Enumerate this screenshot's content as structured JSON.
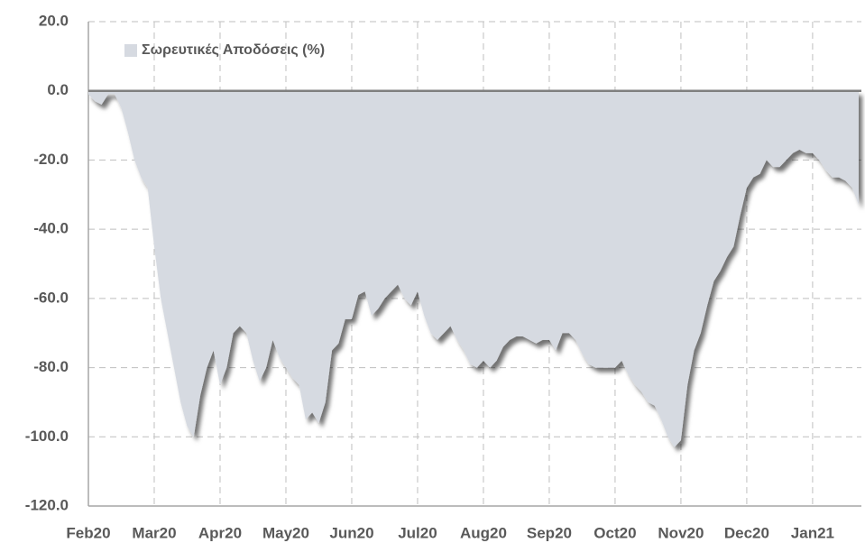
{
  "chart_data": {
    "type": "area",
    "categories": [
      "Feb20",
      null,
      null,
      null,
      null,
      null,
      null,
      null,
      null,
      null,
      "Mar20",
      null,
      null,
      null,
      null,
      null,
      null,
      null,
      null,
      null,
      "Apr20",
      null,
      null,
      null,
      null,
      null,
      null,
      null,
      null,
      null,
      "May20",
      null,
      null,
      null,
      null,
      null,
      null,
      null,
      null,
      null,
      "Jun20",
      null,
      null,
      null,
      null,
      null,
      null,
      null,
      null,
      null,
      "Jul20",
      null,
      null,
      null,
      null,
      null,
      null,
      null,
      null,
      null,
      "Aug20",
      null,
      null,
      null,
      null,
      null,
      null,
      null,
      null,
      null,
      "Sep20",
      null,
      null,
      null,
      null,
      null,
      null,
      null,
      null,
      null,
      "Oct20",
      null,
      null,
      null,
      null,
      null,
      null,
      null,
      null,
      null,
      "Nov20",
      null,
      null,
      null,
      null,
      null,
      null,
      null,
      null,
      null,
      "Dec20",
      null,
      null,
      null,
      null,
      null,
      null,
      null,
      null,
      null,
      "Jan21",
      null,
      null,
      null,
      null,
      null,
      null,
      null
    ],
    "series": [
      {
        "name": "Σωρευτικές Αποδόσεις (%)",
        "color": "#d6dae1",
        "values": [
          -1,
          -3,
          -4,
          -1,
          -1,
          -5,
          -12,
          -20,
          -25,
          -28,
          -45,
          -60,
          -70,
          -80,
          -90,
          -97,
          -100,
          -88,
          -80,
          -75,
          -85,
          -80,
          -70,
          -68,
          -70,
          -78,
          -84,
          -80,
          -72,
          -77,
          -80,
          -83,
          -85,
          -95,
          -93,
          -96,
          -90,
          -75,
          -73,
          -66,
          -66,
          -59,
          -58,
          -65,
          -63,
          -60,
          -58,
          -56,
          -60,
          -62,
          -58,
          -65,
          -70,
          -72,
          -70,
          -68,
          -72,
          -75,
          -79,
          -80,
          -78,
          -80,
          -78,
          -74,
          -72,
          -71,
          -71,
          -72,
          -73,
          -72,
          -72,
          -75,
          -70,
          -70,
          -72,
          -76,
          -79,
          -80,
          -80,
          -80,
          -80,
          -78,
          -82,
          -85,
          -87,
          -90,
          -91,
          -95,
          -100,
          -103,
          -101,
          -85,
          -75,
          -70,
          -62,
          -55,
          -52,
          -48,
          -45,
          -36,
          -28,
          -25,
          -24,
          -20,
          -22,
          -22,
          -20,
          -18,
          -17,
          -18,
          -18,
          -20,
          -23,
          -25,
          -25,
          -26,
          -28,
          -33
        ]
      }
    ],
    "ylim": [
      -120,
      20
    ],
    "yticks": [
      {
        "value": 20,
        "label": "20.0"
      },
      {
        "value": 0,
        "label": "0.0"
      },
      {
        "value": -20,
        "label": "-20.0"
      },
      {
        "value": -40,
        "label": "-40.0"
      },
      {
        "value": -60,
        "label": "-60.0"
      },
      {
        "value": -80,
        "label": "-80.0"
      },
      {
        "value": -100,
        "label": "-100.0"
      },
      {
        "value": -120,
        "label": "-120.0"
      }
    ],
    "grid": true,
    "legend": "top-left"
  }
}
